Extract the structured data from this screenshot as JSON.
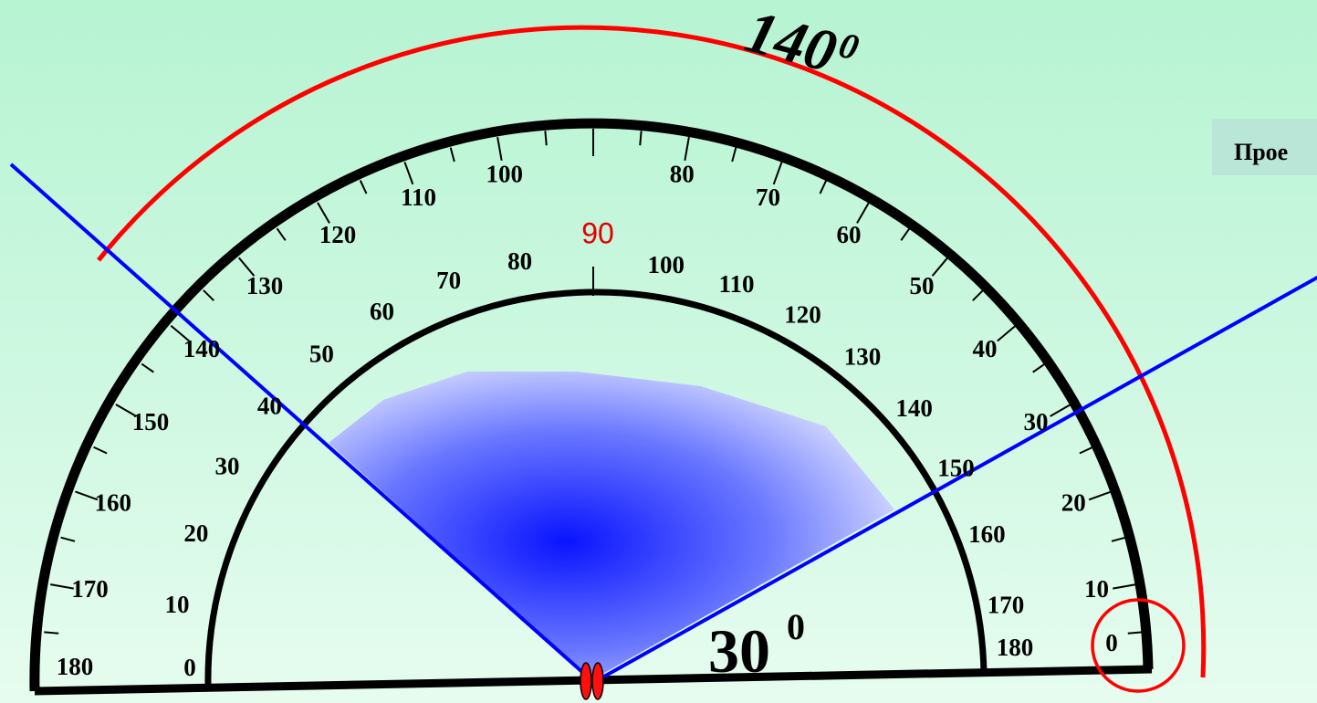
{
  "protractor": {
    "outer_scale_labels": [
      "10",
      "20",
      "30",
      "40",
      "50",
      "60",
      "70",
      "80",
      "100",
      "110",
      "120",
      "130",
      "140",
      "150",
      "160",
      "170",
      "180"
    ],
    "inner_scale_left_labels": [
      "0",
      "10",
      "20",
      "30",
      "40",
      "50",
      "60",
      "70",
      "80"
    ],
    "inner_scale_right_labels": [
      "100",
      "110",
      "120",
      "130",
      "140",
      "150",
      "160",
      "170",
      "180"
    ],
    "outer_zero_label": "0",
    "center_label": "90",
    "rays_angles_deg": [
      30,
      140
    ]
  },
  "annotations": {
    "big_angle_value": "140",
    "big_angle_degree": "0",
    "small_angle_value": "30",
    "small_angle_degree": "0"
  },
  "side_panel": {
    "text": "Прое"
  },
  "colors": {
    "ray": "#0000ff",
    "arc": "#ff0000",
    "protractor": "#000000",
    "fill_center": "#0a14ff",
    "fill_edge": "#e4e8ff"
  }
}
